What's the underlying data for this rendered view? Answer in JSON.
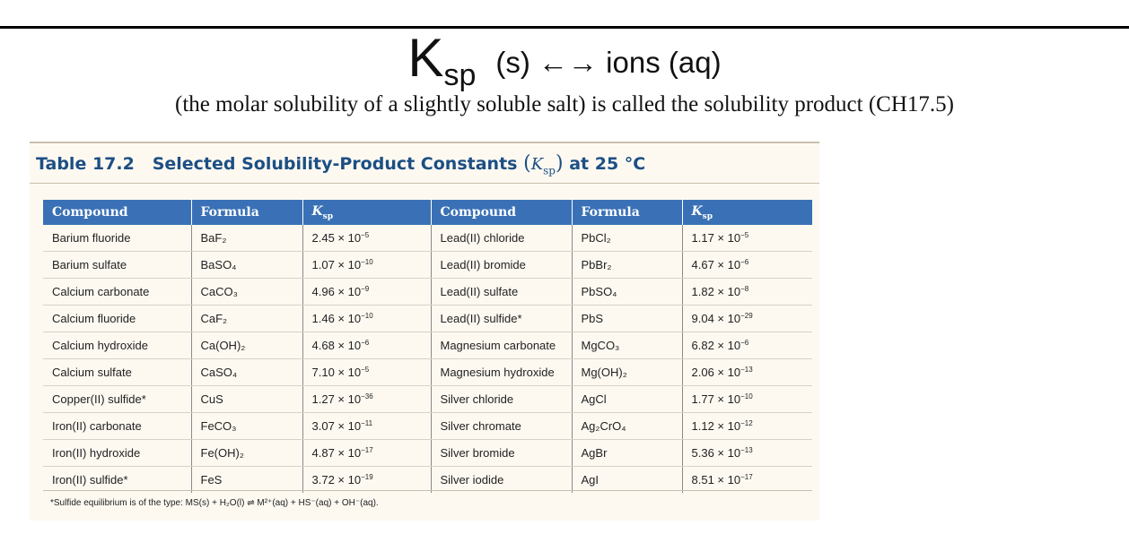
{
  "heading": {
    "k": "K",
    "k_sub": "sp",
    "rest": "(s) ←→ ions (aq)"
  },
  "subtitle": "(the molar solubility of a slightly soluble salt) is called the solubility product (CH17.5)",
  "table": {
    "title_prefix": "Table 17.2",
    "title_main": "Selected Solubility-Product Constants",
    "title_k": "K",
    "title_k_sub": "sp",
    "title_suffix": "at 25 °C",
    "headers": {
      "compound": "Compound",
      "formula": "Formula",
      "ksp": "K",
      "ksp_sub": "sp"
    },
    "rows": [
      {
        "c1": "Barium fluoride",
        "f1": "BaF₂",
        "k1": "2.45 × 10",
        "e1": "−5",
        "c2": "Lead(II) chloride",
        "f2": "PbCl₂",
        "k2": "1.17 × 10",
        "e2": "−5"
      },
      {
        "c1": "Barium sulfate",
        "f1": "BaSO₄",
        "k1": "1.07 × 10",
        "e1": "−10",
        "c2": "Lead(II) bromide",
        "f2": "PbBr₂",
        "k2": "4.67 × 10",
        "e2": "−6"
      },
      {
        "c1": "Calcium carbonate",
        "f1": "CaCO₃",
        "k1": "4.96 × 10",
        "e1": "−9",
        "c2": "Lead(II) sulfate",
        "f2": "PbSO₄",
        "k2": "1.82 × 10",
        "e2": "−8"
      },
      {
        "c1": "Calcium fluoride",
        "f1": "CaF₂",
        "k1": "1.46 × 10",
        "e1": "−10",
        "c2": "Lead(II) sulfide*",
        "f2": "PbS",
        "k2": "9.04 × 10",
        "e2": "−29"
      },
      {
        "c1": "Calcium hydroxide",
        "f1": "Ca(OH)₂",
        "k1": "4.68 × 10",
        "e1": "−6",
        "c2": "Magnesium carbonate",
        "f2": "MgCO₃",
        "k2": "6.82 × 10",
        "e2": "−6"
      },
      {
        "c1": "Calcium sulfate",
        "f1": "CaSO₄",
        "k1": "7.10 × 10",
        "e1": "−5",
        "c2": "Magnesium hydroxide",
        "f2": "Mg(OH)₂",
        "k2": "2.06 × 10",
        "e2": "−13"
      },
      {
        "c1": "Copper(II) sulfide*",
        "f1": "CuS",
        "k1": "1.27 × 10",
        "e1": "−36",
        "c2": "Silver chloride",
        "f2": "AgCl",
        "k2": "1.77 × 10",
        "e2": "−10"
      },
      {
        "c1": "Iron(II) carbonate",
        "f1": "FeCO₃",
        "k1": "3.07 × 10",
        "e1": "−11",
        "c2": "Silver chromate",
        "f2": "Ag₂CrO₄",
        "k2": "1.12 × 10",
        "e2": "−12"
      },
      {
        "c1": "Iron(II) hydroxide",
        "f1": "Fe(OH)₂",
        "k1": "4.87 × 10",
        "e1": "−17",
        "c2": "Silver bromide",
        "f2": "AgBr",
        "k2": "5.36 × 10",
        "e2": "−13"
      },
      {
        "c1": "Iron(II) sulfide*",
        "f1": "FeS",
        "k1": "3.72 × 10",
        "e1": "−19",
        "c2": "Silver iodide",
        "f2": "AgI",
        "k2": "8.51 × 10",
        "e2": "−17"
      }
    ],
    "footnote": "*Sulfide equilibrium is of the type: MS(s) + H₂O(l) ⇌ M²⁺(aq) + HS⁻(aq) + OH⁻(aq)."
  },
  "colors": {
    "header_blue": "#3a71b6",
    "title_blue": "#1c4f84",
    "panel_bg": "#fdf9f1"
  }
}
